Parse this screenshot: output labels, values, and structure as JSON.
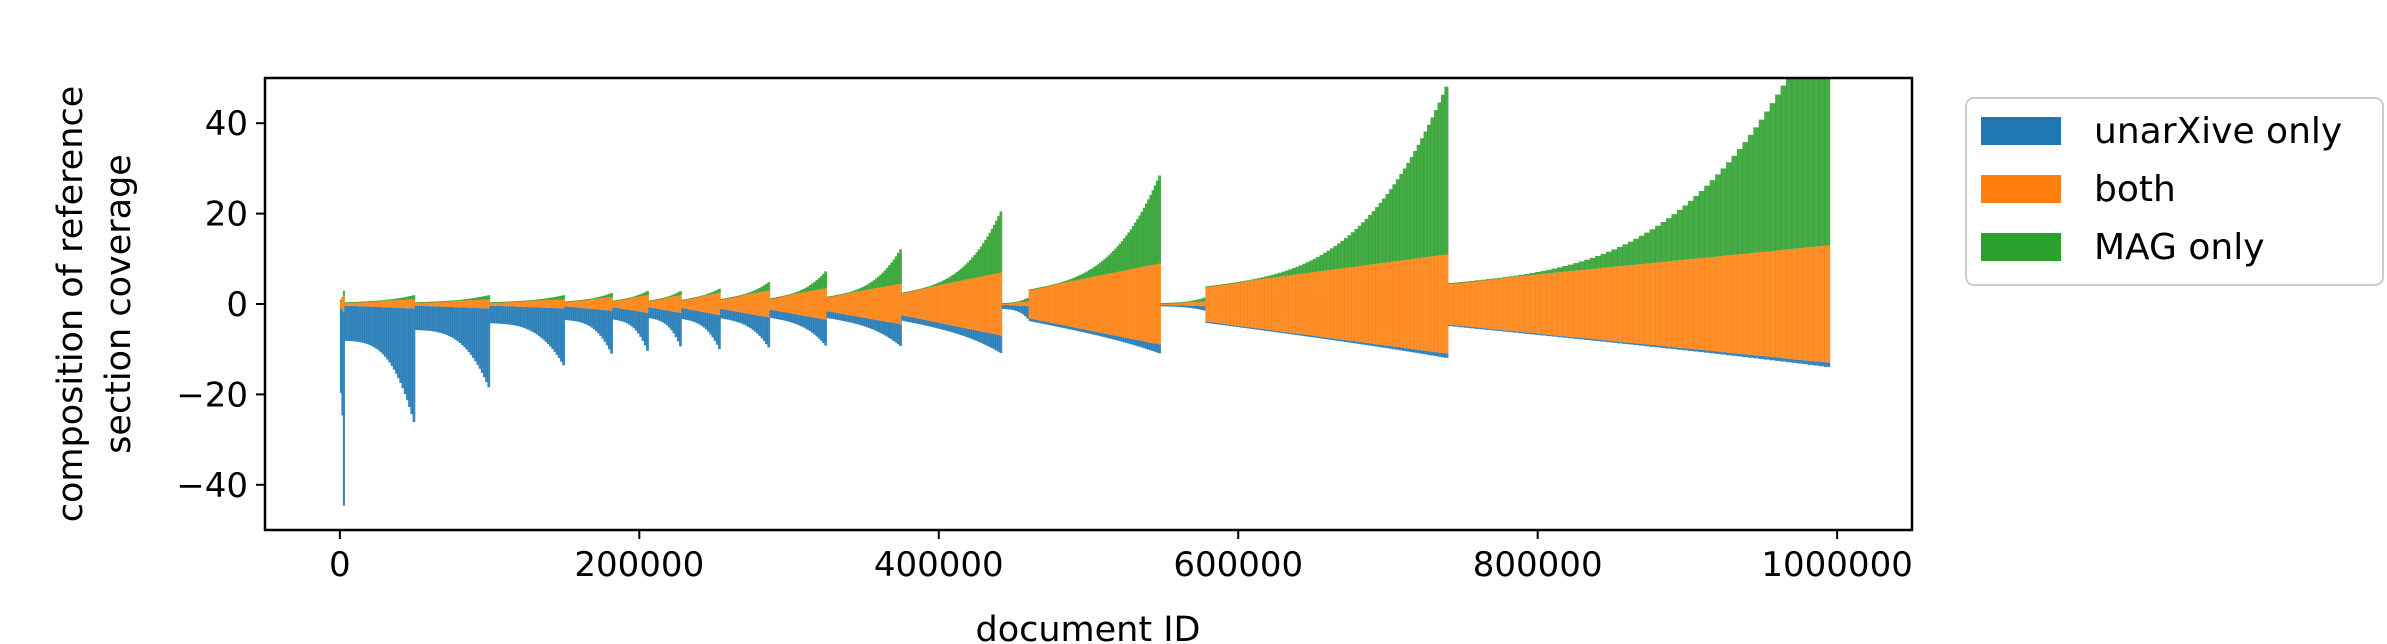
{
  "chart_data": {
    "type": "bar",
    "title": "",
    "xlabel": "document ID",
    "ylabel_lines": [
      "composition of reference",
      "section coverage"
    ],
    "xlim": [
      -50000,
      1050000
    ],
    "ylim": [
      -50,
      50
    ],
    "x_ticks": [
      0,
      200000,
      400000,
      600000,
      800000,
      1000000
    ],
    "x_tick_labels": [
      "0",
      "200000",
      "400000",
      "600000",
      "800000",
      "1000000"
    ],
    "y_ticks": [
      40,
      20,
      0,
      -20,
      -40
    ],
    "y_tick_labels": [
      "40",
      "20",
      "0",
      "−20",
      "−40"
    ],
    "grid": false,
    "legend_position": "outside-right",
    "series": [
      {
        "name": "unarXive only",
        "color": "#1f77b4"
      },
      {
        "name": "both",
        "color": "#ff7f0e"
      },
      {
        "name": "MAG only",
        "color": "#2ca02c"
      }
    ],
    "groups": [
      {
        "start": 0,
        "end": 3000,
        "u": 62,
        "b": 4,
        "m": 2
      },
      {
        "start": 3000,
        "end": 50000,
        "u": 26,
        "b": 2,
        "m": 1
      },
      {
        "start": 50000,
        "end": 100000,
        "u": 18,
        "b": 2,
        "m": 1
      },
      {
        "start": 100000,
        "end": 150000,
        "u": 13,
        "b": 2,
        "m": 1
      },
      {
        "start": 150000,
        "end": 182000,
        "u": 10,
        "b": 3,
        "m": 1
      },
      {
        "start": 182000,
        "end": 206000,
        "u": 9,
        "b": 4,
        "m": 1
      },
      {
        "start": 206000,
        "end": 228000,
        "u": 8,
        "b": 4,
        "m": 1
      },
      {
        "start": 228000,
        "end": 254000,
        "u": 8,
        "b": 5,
        "m": 1
      },
      {
        "start": 254000,
        "end": 287000,
        "u": 7,
        "b": 6,
        "m": 2
      },
      {
        "start": 287000,
        "end": 325000,
        "u": 6,
        "b": 7,
        "m": 4
      },
      {
        "start": 325000,
        "end": 375000,
        "u": 5,
        "b": 9,
        "m": 8
      },
      {
        "start": 375000,
        "end": 442000,
        "u": 4,
        "b": 14,
        "m": 14
      },
      {
        "start": 442000,
        "end": 460000,
        "u": 3,
        "b": 1,
        "m": 1
      },
      {
        "start": 460000,
        "end": 548000,
        "u": 2,
        "b": 18,
        "m": 20
      },
      {
        "start": 548000,
        "end": 578000,
        "u": 1,
        "b": 1,
        "m": 1
      },
      {
        "start": 578000,
        "end": 740000,
        "u": 1,
        "b": 22,
        "m": 38
      },
      {
        "start": 740000,
        "end": 995000,
        "u": 1,
        "b": 26,
        "m": 55
      }
    ]
  }
}
